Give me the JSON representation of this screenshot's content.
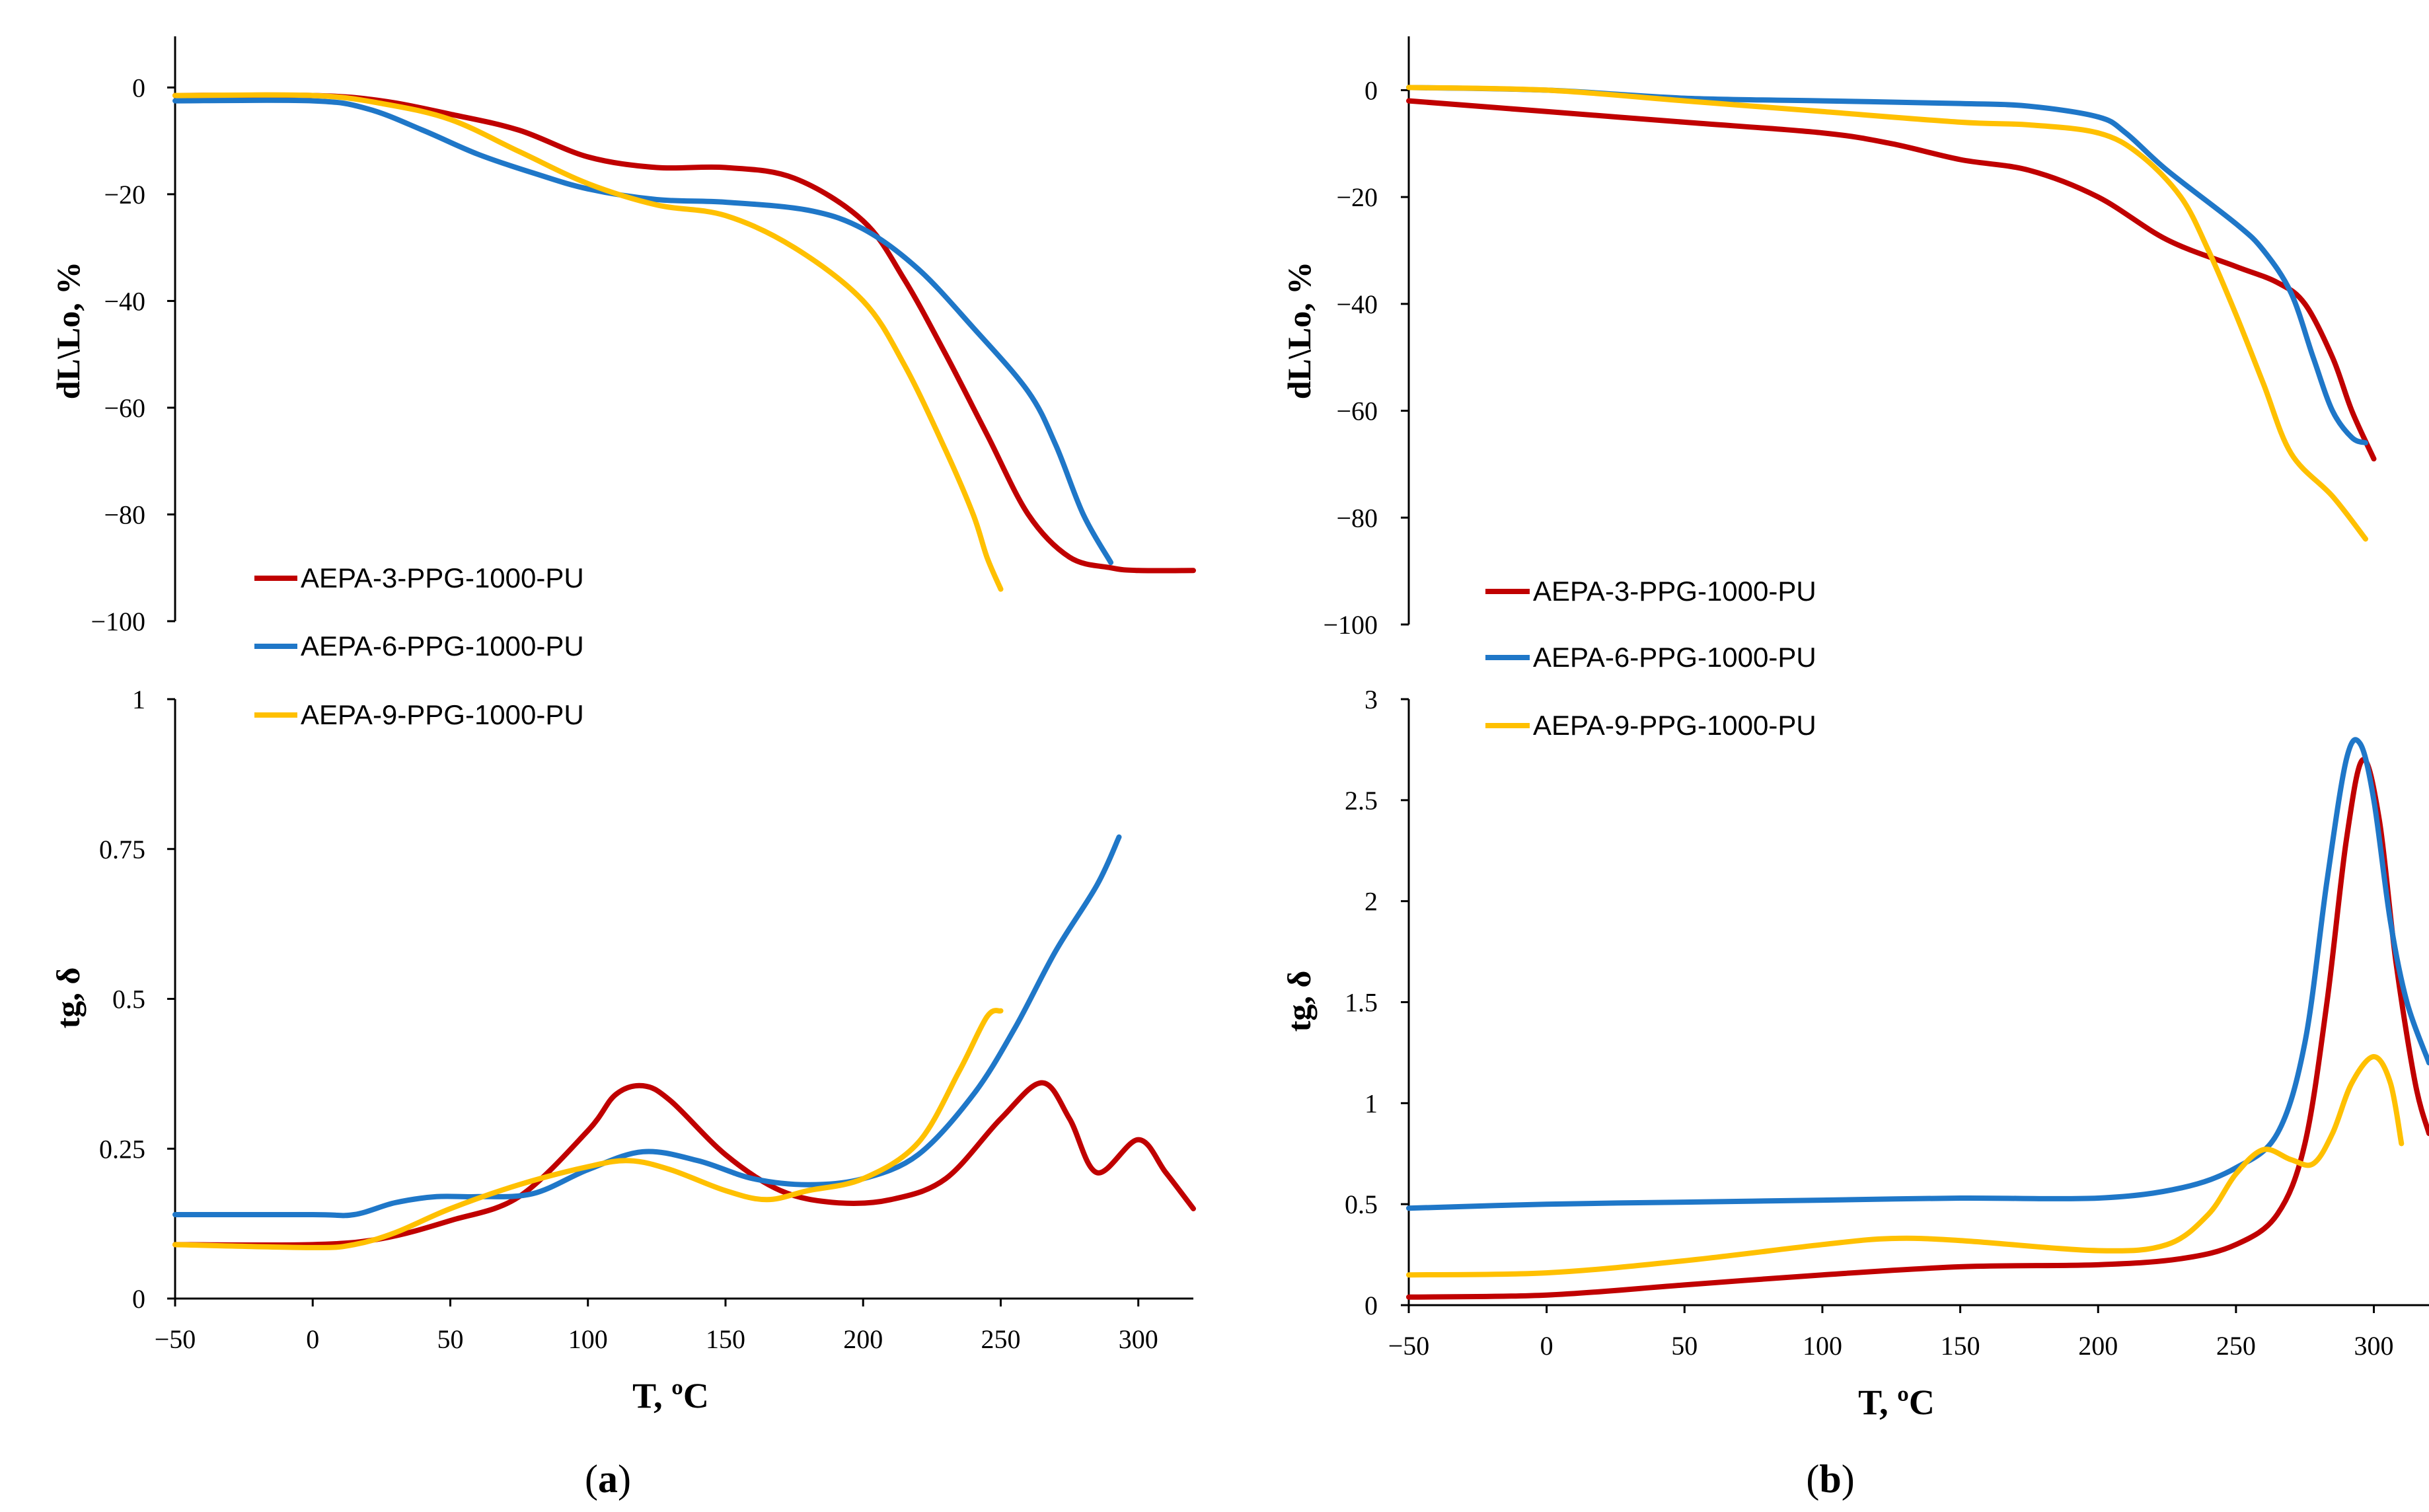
{
  "colors": {
    "series1": "#C00000",
    "series2": "#1F77C8",
    "series3": "#FFC000"
  },
  "legend": [
    "AEPA-3-PPG-1000-PU",
    "AEPA-6-PPG-1000-PU",
    "AEPA-9-PPG-1000-PU"
  ],
  "panels": [
    {
      "label": "a",
      "xlabel": "T, ºC",
      "xticks": [
        "−50",
        "0",
        "50",
        "100",
        "150",
        "200",
        "250",
        "300"
      ]
    },
    {
      "label": "b",
      "xlabel": "T, ºC",
      "xticks": [
        "−50",
        "0",
        "50",
        "100",
        "150",
        "200",
        "250",
        "300"
      ]
    }
  ],
  "chart_data": [
    {
      "id": "a-top",
      "type": "line",
      "panel": "a",
      "ylabel": "dL\\Lo, %",
      "xlim": [
        -50,
        320
      ],
      "ylim": [
        -100,
        5
      ],
      "yticks": [
        0,
        -20,
        -40,
        -60,
        -80,
        -100
      ],
      "ytick_labels": [
        "0",
        "−20",
        "−40",
        "−60",
        "−80",
        "−100"
      ],
      "series": [
        {
          "name": "AEPA-3-PPG-1000-PU",
          "x": [
            -50,
            0,
            25,
            50,
            75,
            100,
            125,
            150,
            175,
            200,
            215,
            230,
            245,
            260,
            275,
            290,
            300,
            320
          ],
          "y": [
            -1.5,
            -1.5,
            -2.5,
            -5,
            -8,
            -13,
            -15,
            -15,
            -17,
            -25,
            -36,
            -50,
            -65,
            -80,
            -88,
            -90,
            -90.5,
            -90.5
          ]
        },
        {
          "name": "AEPA-6-PPG-1000-PU",
          "x": [
            -50,
            0,
            20,
            40,
            60,
            80,
            100,
            125,
            150,
            180,
            200,
            220,
            240,
            260,
            270,
            280,
            290
          ],
          "y": [
            -2.5,
            -2.5,
            -4,
            -8,
            -12.5,
            -16,
            -19,
            -21,
            -21.5,
            -23,
            -26.5,
            -34,
            -45,
            -57,
            -67,
            -80,
            -89
          ]
        },
        {
          "name": "AEPA-9-PPG-1000-PU",
          "x": [
            -50,
            0,
            25,
            50,
            75,
            100,
            125,
            150,
            175,
            200,
            215,
            230,
            240,
            245,
            250
          ],
          "y": [
            -1.5,
            -1.5,
            -3,
            -6,
            -12,
            -18,
            -22,
            -24,
            -30,
            -40,
            -52,
            -68,
            -80,
            -88,
            -94
          ]
        }
      ]
    },
    {
      "id": "a-bottom",
      "type": "line",
      "panel": "a",
      "ylabel": "tg, δ",
      "xlim": [
        -50,
        320
      ],
      "ylim": [
        0,
        1
      ],
      "yticks": [
        0,
        0.25,
        0.5,
        0.75,
        1
      ],
      "ytick_labels": [
        "0",
        "0.25",
        "0.5",
        "0.75",
        "1"
      ],
      "series": [
        {
          "name": "AEPA-3-PPG-1000-PU",
          "x": [
            -50,
            0,
            25,
            50,
            75,
            100,
            110,
            120,
            130,
            150,
            170,
            190,
            210,
            230,
            250,
            265,
            275,
            285,
            300,
            310,
            320
          ],
          "y": [
            0.09,
            0.09,
            0.1,
            0.13,
            0.17,
            0.28,
            0.34,
            0.355,
            0.33,
            0.24,
            0.18,
            0.16,
            0.165,
            0.2,
            0.3,
            0.36,
            0.3,
            0.21,
            0.265,
            0.21,
            0.15
          ]
        },
        {
          "name": "AEPA-6-PPG-1000-PU",
          "x": [
            -50,
            0,
            15,
            30,
            45,
            60,
            80,
            100,
            120,
            140,
            160,
            180,
            200,
            220,
            240,
            255,
            270,
            285,
            293
          ],
          "y": [
            0.14,
            0.14,
            0.14,
            0.16,
            0.17,
            0.17,
            0.175,
            0.215,
            0.245,
            0.23,
            0.2,
            0.19,
            0.2,
            0.24,
            0.34,
            0.45,
            0.58,
            0.69,
            0.77
          ]
        },
        {
          "name": "AEPA-9-PPG-1000-PU",
          "x": [
            -50,
            0,
            15,
            30,
            50,
            75,
            100,
            115,
            130,
            150,
            165,
            180,
            200,
            220,
            235,
            245,
            250
          ],
          "y": [
            0.09,
            0.085,
            0.09,
            0.11,
            0.15,
            0.19,
            0.22,
            0.23,
            0.215,
            0.18,
            0.165,
            0.18,
            0.2,
            0.26,
            0.38,
            0.47,
            0.48
          ]
        }
      ]
    },
    {
      "id": "b-top",
      "type": "line",
      "panel": "b",
      "ylabel": "dL\\Lo, %",
      "xlim": [
        -50,
        320
      ],
      "ylim": [
        -100,
        5
      ],
      "yticks": [
        0,
        -20,
        -40,
        -60,
        -80,
        -100
      ],
      "ytick_labels": [
        "0",
        "−20",
        "−40",
        "−60",
        "−80",
        "−100"
      ],
      "series": [
        {
          "name": "AEPA-3-PPG-1000-PU",
          "x": [
            -50,
            0,
            50,
            100,
            125,
            150,
            175,
            200,
            225,
            250,
            265,
            275,
            285,
            292,
            300
          ],
          "y": [
            -2,
            -4,
            -6,
            -8,
            -10,
            -13,
            -15,
            -20,
            -28,
            -33,
            -36,
            -40,
            -50,
            -60,
            -69
          ]
        },
        {
          "name": "AEPA-6-PPG-1000-PU",
          "x": [
            -50,
            0,
            50,
            100,
            150,
            175,
            200,
            210,
            225,
            250,
            260,
            270,
            278,
            285,
            292,
            297
          ],
          "y": [
            0.5,
            0,
            -1.5,
            -2,
            -2.5,
            -3,
            -5,
            -8,
            -15,
            -25,
            -30,
            -38,
            -50,
            -60,
            -65,
            -66
          ]
        },
        {
          "name": "AEPA-9-PPG-1000-PU",
          "x": [
            -50,
            0,
            50,
            100,
            150,
            175,
            200,
            215,
            230,
            240,
            250,
            260,
            270,
            285,
            297
          ],
          "y": [
            0.5,
            0,
            -2,
            -4,
            -6,
            -6.5,
            -8,
            -12,
            -20,
            -30,
            -42,
            -55,
            -68,
            -76,
            -84
          ]
        }
      ]
    },
    {
      "id": "b-bottom",
      "type": "line",
      "panel": "b",
      "ylabel": "tg, δ",
      "xlim": [
        -50,
        320
      ],
      "ylim": [
        0,
        3
      ],
      "yticks": [
        0,
        0.5,
        1,
        1.5,
        2,
        2.5,
        3
      ],
      "ytick_labels": [
        "0",
        "0.5",
        "1",
        "1.5",
        "2",
        "2.5",
        "3"
      ],
      "series": [
        {
          "name": "AEPA-3-PPG-1000-PU",
          "x": [
            -50,
            0,
            50,
            100,
            150,
            200,
            230,
            250,
            265,
            275,
            283,
            290,
            296,
            302,
            308,
            315,
            320
          ],
          "y": [
            0.04,
            0.05,
            0.1,
            0.15,
            0.19,
            0.2,
            0.23,
            0.3,
            0.45,
            0.8,
            1.5,
            2.3,
            2.7,
            2.4,
            1.7,
            1.1,
            0.85
          ]
        },
        {
          "name": "AEPA-6-PPG-1000-PU",
          "x": [
            -50,
            0,
            50,
            100,
            150,
            200,
            230,
            250,
            265,
            275,
            283,
            290,
            295,
            300,
            306,
            312,
            320
          ],
          "y": [
            0.48,
            0.5,
            0.51,
            0.52,
            0.53,
            0.53,
            0.58,
            0.68,
            0.85,
            1.3,
            2.1,
            2.7,
            2.78,
            2.5,
            1.9,
            1.5,
            1.2
          ]
        },
        {
          "name": "AEPA-9-PPG-1000-PU",
          "x": [
            -50,
            0,
            50,
            100,
            125,
            150,
            200,
            225,
            240,
            250,
            260,
            270,
            278,
            285,
            292,
            300,
            306,
            310
          ],
          "y": [
            0.15,
            0.16,
            0.22,
            0.3,
            0.33,
            0.32,
            0.27,
            0.3,
            0.45,
            0.65,
            0.77,
            0.72,
            0.7,
            0.85,
            1.1,
            1.23,
            1.1,
            0.8
          ]
        }
      ]
    }
  ]
}
